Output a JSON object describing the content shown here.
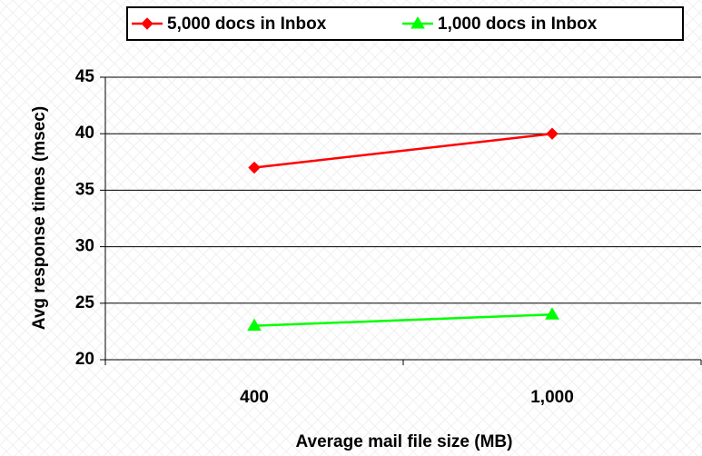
{
  "chart_data": {
    "type": "line",
    "categories": [
      "400",
      "1,000"
    ],
    "series": [
      {
        "name": "5,000 docs in Inbox",
        "color": "#ff0000",
        "marker": "diamond",
        "values": [
          37,
          40
        ]
      },
      {
        "name": "1,000 docs in Inbox",
        "color": "#00ff00",
        "marker": "triangle",
        "values": [
          23,
          24
        ]
      }
    ],
    "x_label": "Average mail file size (MB)",
    "y_label": "Avg response times (msec)",
    "ylim": [
      20,
      45
    ],
    "yticks": [
      20,
      25,
      30,
      35,
      40,
      45
    ],
    "grid": true,
    "legend": "top-right"
  }
}
